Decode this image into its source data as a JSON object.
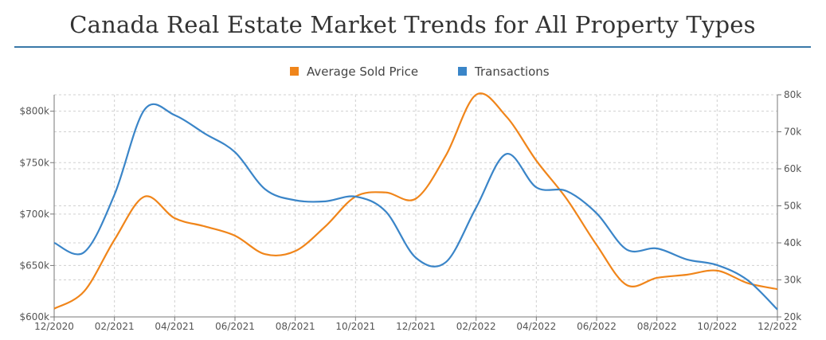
{
  "chart_data": {
    "type": "line",
    "title": "Canada Real Estate Market Trends for All Property Types",
    "x": [
      "12/2020",
      "01/2021",
      "02/2021",
      "03/2021",
      "04/2021",
      "05/2021",
      "06/2021",
      "07/2021",
      "08/2021",
      "09/2021",
      "10/2021",
      "11/2021",
      "12/2021",
      "01/2022",
      "02/2022",
      "03/2022",
      "04/2022",
      "05/2022",
      "06/2022",
      "07/2022",
      "08/2022",
      "09/2022",
      "10/2022",
      "11/2022",
      "12/2022"
    ],
    "x_tick_labels": [
      "12/2020",
      "02/2021",
      "04/2021",
      "06/2021",
      "08/2021",
      "10/2021",
      "12/2021",
      "02/2022",
      "04/2022",
      "06/2022",
      "08/2022",
      "10/2022",
      "12/2022"
    ],
    "series": [
      {
        "name": "Average Sold Price",
        "axis": "left",
        "color": "#f0851a",
        "values": [
          608000,
          625000,
          675000,
          717000,
          696000,
          688000,
          679000,
          661000,
          664000,
          688000,
          717000,
          721000,
          715000,
          757000,
          816000,
          795000,
          752000,
          715000,
          670000,
          631000,
          638000,
          641000,
          645000,
          633000,
          627000
        ]
      },
      {
        "name": "Transactions",
        "axis": "right",
        "color": "#3a85c8",
        "values": [
          40000,
          37500,
          53000,
          76000,
          74500,
          69500,
          64500,
          54500,
          51500,
          51200,
          52500,
          48500,
          36000,
          34800,
          49500,
          64000,
          55000,
          54000,
          48000,
          38200,
          38500,
          35500,
          34000,
          30000,
          22000
        ]
      }
    ],
    "y_left": {
      "ticks": [
        "$600k",
        "$650k",
        "$700k",
        "$750k",
        "$800k"
      ],
      "tick_values": [
        600000,
        650000,
        700000,
        750000,
        800000
      ],
      "range": [
        600000,
        816000
      ]
    },
    "y_right": {
      "ticks": [
        "20k",
        "30k",
        "40k",
        "50k",
        "60k",
        "70k",
        "80k"
      ],
      "tick_values": [
        20000,
        30000,
        40000,
        50000,
        60000,
        70000,
        80000
      ],
      "range": [
        20000,
        80000
      ]
    },
    "grid": true,
    "legend": {
      "position": "top-center",
      "entries": [
        "Average Sold Price",
        "Transactions"
      ]
    }
  }
}
